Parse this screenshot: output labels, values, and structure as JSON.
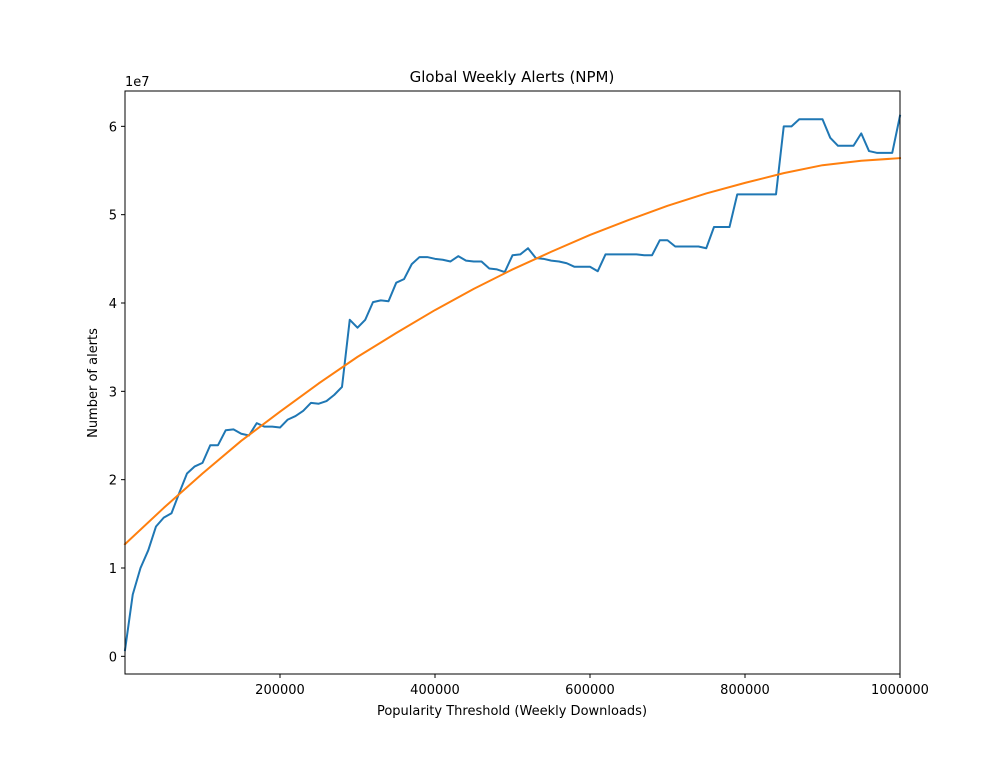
{
  "chart_data": {
    "type": "line",
    "title": "Global Weekly Alerts (NPM)",
    "xlabel": "Popularity Threshold (Weekly Downloads)",
    "ylabel": "Number of alerts",
    "y_offset_text": "1e7",
    "xlim": [
      0,
      1000000
    ],
    "ylim": [
      -2000000,
      64000000
    ],
    "x_ticks": [
      200000,
      400000,
      600000,
      800000,
      1000000
    ],
    "y_ticks": [
      0,
      10000000,
      20000000,
      30000000,
      40000000,
      50000000,
      60000000
    ],
    "y_tick_labels": [
      "0",
      "1",
      "2",
      "3",
      "4",
      "5",
      "6"
    ],
    "grid": false,
    "colors": {
      "observed": "#1f77b4",
      "fit": "#ff7f0e"
    },
    "series": [
      {
        "color": "#1f77b4",
        "x": [
          0,
          10000,
          20000,
          30000,
          40000,
          50000,
          60000,
          70000,
          80000,
          90000,
          100000,
          110000,
          120000,
          130000,
          140000,
          150000,
          160000,
          170000,
          180000,
          190000,
          200000,
          210000,
          220000,
          230000,
          240000,
          250000,
          260000,
          270000,
          280000,
          290000,
          300000,
          310000,
          320000,
          330000,
          340000,
          350000,
          360000,
          370000,
          380000,
          390000,
          400000,
          410000,
          420000,
          430000,
          440000,
          450000,
          460000,
          470000,
          480000,
          490000,
          500000,
          510000,
          520000,
          530000,
          540000,
          550000,
          560000,
          570000,
          580000,
          590000,
          600000,
          610000,
          620000,
          630000,
          640000,
          650000,
          660000,
          670000,
          680000,
          690000,
          700000,
          710000,
          720000,
          730000,
          740000,
          750000,
          760000,
          770000,
          780000,
          790000,
          800000,
          810000,
          820000,
          830000,
          840000,
          850000,
          860000,
          870000,
          880000,
          890000,
          900000,
          910000,
          920000,
          930000,
          940000,
          950000,
          960000,
          970000,
          980000,
          990000,
          1000000
        ],
        "values": [
          700000,
          7000000,
          10000000,
          12000000,
          14700000,
          15700000,
          16200000,
          18500000,
          20700000,
          21500000,
          21900000,
          23900000,
          23900000,
          25600000,
          25700000,
          25200000,
          25000000,
          26400000,
          26000000,
          26000000,
          25900000,
          26800000,
          27200000,
          27800000,
          28700000,
          28600000,
          28900000,
          29600000,
          30500000,
          38100000,
          37200000,
          38100000,
          40100000,
          40300000,
          40200000,
          42300000,
          42700000,
          44400000,
          45200000,
          45200000,
          45000000,
          44900000,
          44700000,
          45300000,
          44800000,
          44700000,
          44700000,
          43900000,
          43800000,
          43500000,
          45400000,
          45500000,
          46200000,
          45100000,
          45000000,
          44800000,
          44700000,
          44500000,
          44100000,
          44100000,
          44100000,
          43600000,
          45500000,
          45500000,
          45500000,
          45500000,
          45500000,
          45400000,
          45400000,
          47100000,
          47100000,
          46400000,
          46400000,
          46400000,
          46400000,
          46200000,
          48600000,
          48600000,
          48600000,
          52300000,
          52300000,
          52300000,
          52300000,
          52300000,
          52300000,
          60000000,
          60000000,
          60800000,
          60800000,
          60800000,
          60800000,
          58700000,
          57800000,
          57800000,
          57800000,
          59200000,
          57200000,
          57000000,
          57000000,
          57000000,
          61200000
        ]
      },
      {
        "color": "#ff7f0e",
        "x": [
          0,
          50000,
          100000,
          150000,
          200000,
          250000,
          300000,
          350000,
          400000,
          450000,
          500000,
          550000,
          600000,
          650000,
          700000,
          750000,
          800000,
          850000,
          900000,
          950000,
          1000000
        ],
        "values": [
          12700000,
          16800000,
          20700000,
          24400000,
          27700000,
          30900000,
          33900000,
          36600000,
          39200000,
          41600000,
          43800000,
          45800000,
          47700000,
          49400000,
          51000000,
          52400000,
          53600000,
          54700000,
          55600000,
          56100000,
          56400000
        ]
      }
    ]
  }
}
